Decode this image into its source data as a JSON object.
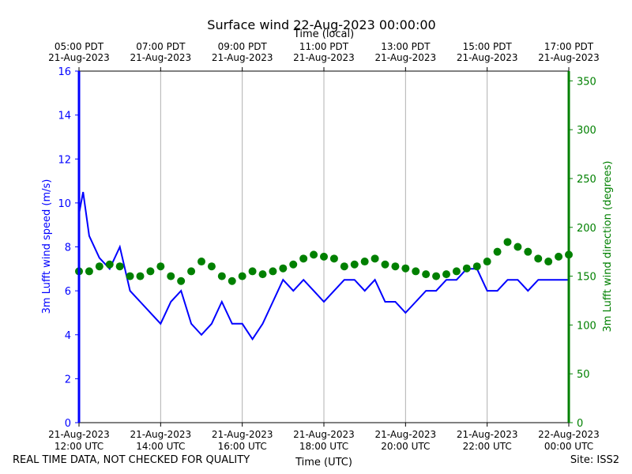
{
  "chart_data": {
    "type": "line",
    "title": "Surface wind 22-Aug-2023 00:00:00",
    "top_axis_title": "Time (local)",
    "xlabel": "Time (UTC)",
    "ylabel_left": "3m Lufft wind speed (m/s)",
    "ylabel_right": "3m Lufft wind direction (degrees)",
    "xlim_hours_utc": [
      12,
      24
    ],
    "ylim_left": [
      0,
      16
    ],
    "ylim_right": [
      0,
      360
    ],
    "yticks_left": [
      0,
      2,
      4,
      6,
      8,
      10,
      12,
      14,
      16
    ],
    "yticks_right": [
      0,
      50,
      100,
      150,
      200,
      250,
      300,
      350
    ],
    "xticks_hours_utc": [
      12,
      14,
      16,
      18,
      20,
      22,
      24
    ],
    "xtick_labels_bottom": [
      [
        "21-Aug-2023",
        "12:00 UTC"
      ],
      [
        "21-Aug-2023",
        "14:00 UTC"
      ],
      [
        "21-Aug-2023",
        "16:00 UTC"
      ],
      [
        "21-Aug-2023",
        "18:00 UTC"
      ],
      [
        "21-Aug-2023",
        "20:00 UTC"
      ],
      [
        "21-Aug-2023",
        "22:00 UTC"
      ],
      [
        "22-Aug-2023",
        "00:00 UTC"
      ]
    ],
    "xtick_labels_top": [
      [
        "05:00 PDT",
        "21-Aug-2023"
      ],
      [
        "07:00 PDT",
        "21-Aug-2023"
      ],
      [
        "09:00 PDT",
        "21-Aug-2023"
      ],
      [
        "11:00 PDT",
        "21-Aug-2023"
      ],
      [
        "13:00 PDT",
        "21-Aug-2023"
      ],
      [
        "15:00 PDT",
        "21-Aug-2023"
      ],
      [
        "17:00 PDT",
        "21-Aug-2023"
      ]
    ],
    "grid": "vertical",
    "series": [
      {
        "name": "3m Lufft wind speed (m/s)",
        "axis": "left",
        "style": "line",
        "color": "#0000ff",
        "x_hours_utc": [
          12.0,
          12.1,
          12.25,
          12.5,
          12.75,
          13.0,
          13.25,
          13.5,
          13.75,
          14.0,
          14.25,
          14.5,
          14.75,
          15.0,
          15.25,
          15.5,
          15.75,
          16.0,
          16.25,
          16.5,
          16.75,
          17.0,
          17.25,
          17.5,
          17.75,
          18.0,
          18.25,
          18.5,
          18.75,
          19.0,
          19.25,
          19.5,
          19.75,
          20.0,
          20.25,
          20.5,
          20.75,
          21.0,
          21.25,
          21.5,
          21.75,
          22.0,
          22.25,
          22.5,
          22.75,
          23.0,
          23.25,
          23.5,
          23.75,
          24.0
        ],
        "values": [
          9.5,
          10.5,
          8.5,
          7.5,
          7.0,
          8.0,
          6.0,
          5.5,
          5.0,
          4.5,
          5.5,
          6.0,
          4.5,
          4.0,
          4.5,
          5.5,
          4.5,
          4.5,
          3.8,
          4.5,
          5.5,
          6.5,
          6.0,
          6.5,
          6.0,
          5.5,
          6.0,
          6.5,
          6.5,
          6.0,
          6.5,
          5.5,
          5.5,
          5.0,
          5.5,
          6.0,
          6.0,
          6.5,
          6.5,
          7.0,
          7.0,
          6.0,
          6.0,
          6.5,
          6.5,
          6.0,
          6.5,
          6.5,
          6.5,
          6.5
        ]
      },
      {
        "name": "3m Lufft wind direction (degrees)",
        "axis": "right",
        "style": "markers",
        "color": "#008000",
        "x_hours_utc": [
          12.0,
          12.25,
          12.5,
          12.75,
          13.0,
          13.25,
          13.5,
          13.75,
          14.0,
          14.25,
          14.5,
          14.75,
          15.0,
          15.25,
          15.5,
          15.75,
          16.0,
          16.25,
          16.5,
          16.75,
          17.0,
          17.25,
          17.5,
          17.75,
          18.0,
          18.25,
          18.5,
          18.75,
          19.0,
          19.25,
          19.5,
          19.75,
          20.0,
          20.25,
          20.5,
          20.75,
          21.0,
          21.25,
          21.5,
          21.75,
          22.0,
          22.25,
          22.5,
          22.75,
          23.0,
          23.25,
          23.5,
          23.75,
          24.0
        ],
        "values": [
          155,
          155,
          160,
          162,
          160,
          150,
          150,
          155,
          160,
          150,
          145,
          155,
          165,
          160,
          150,
          145,
          150,
          155,
          152,
          155,
          158,
          162,
          168,
          172,
          170,
          168,
          160,
          162,
          165,
          168,
          162,
          160,
          158,
          155,
          152,
          150,
          152,
          155,
          158,
          160,
          165,
          175,
          185,
          180,
          175,
          168,
          165,
          170,
          172
        ]
      }
    ]
  },
  "footer": {
    "disclaimer": "REAL TIME DATA, NOT CHECKED FOR QUALITY",
    "site": "Site: ISS2"
  },
  "colors": {
    "speed": "#0000ff",
    "direction": "#008000",
    "grid": "#b0b0b0",
    "axis": "#000000"
  }
}
